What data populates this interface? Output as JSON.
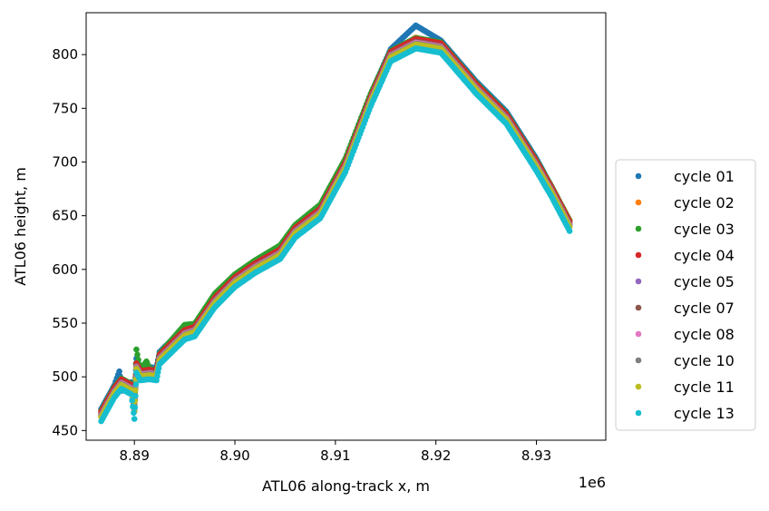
{
  "chart_data": {
    "type": "scatter",
    "title": "",
    "xlabel": "ATL06 along-track x, m",
    "ylabel": "ATL06 height, m",
    "x_offset_label": "1e6",
    "x_units_scale": 1000000,
    "xlim": [
      8.8852,
      8.9369
    ],
    "ylim": [
      441,
      839
    ],
    "x_ticks": [
      8.89,
      8.9,
      8.91,
      8.92,
      8.93
    ],
    "x_tick_labels": [
      "8.89",
      "8.90",
      "8.91",
      "8.92",
      "8.93"
    ],
    "y_ticks": [
      450,
      500,
      550,
      600,
      650,
      700,
      750,
      800
    ],
    "y_tick_labels": [
      "450",
      "500",
      "550",
      "600",
      "650",
      "700",
      "750",
      "800"
    ],
    "grid": false,
    "legend_position": "outside-right-bottom",
    "series": [
      {
        "name": "cycle 01",
        "color": "#1f77b4",
        "dy": 6,
        "points": [
          [
            8.8867,
            465
          ],
          [
            8.888,
            487
          ],
          [
            8.8885,
            500
          ],
          [
            8.8888,
            482
          ],
          [
            8.8897,
            490
          ],
          [
            8.89,
            470
          ],
          [
            8.8902,
            512
          ],
          [
            8.8906,
            503
          ],
          [
            8.8915,
            504
          ],
          [
            8.8922,
            503
          ],
          [
            8.8925,
            518
          ],
          [
            8.895,
            541
          ],
          [
            8.896,
            544
          ],
          [
            8.898,
            571
          ],
          [
            8.9,
            590
          ],
          [
            8.902,
            603
          ],
          [
            8.9045,
            616
          ],
          [
            8.906,
            636
          ],
          [
            8.9085,
            654
          ],
          [
            8.911,
            697
          ],
          [
            8.9135,
            758
          ],
          [
            8.9155,
            800
          ],
          [
            8.918,
            822
          ],
          [
            8.9205,
            808
          ],
          [
            8.924,
            770
          ],
          [
            8.927,
            742
          ],
          [
            8.93,
            698
          ],
          [
            8.9315,
            672
          ],
          [
            8.9333,
            640
          ]
        ]
      },
      {
        "name": "cycle 02",
        "color": "#ff7f0e",
        "dy": 1,
        "points": [
          [
            8.8867,
            465
          ],
          [
            8.888,
            487
          ],
          [
            8.8887,
            495
          ],
          [
            8.8897,
            490
          ],
          [
            8.89,
            475
          ],
          [
            8.8902,
            510
          ],
          [
            8.8906,
            503
          ],
          [
            8.8915,
            504
          ],
          [
            8.8922,
            503
          ],
          [
            8.8925,
            518
          ],
          [
            8.895,
            541
          ],
          [
            8.896,
            544
          ],
          [
            8.898,
            571
          ],
          [
            8.9,
            590
          ],
          [
            8.902,
            603
          ],
          [
            8.9045,
            616
          ],
          [
            8.906,
            636
          ],
          [
            8.9085,
            654
          ],
          [
            8.911,
            697
          ],
          [
            8.9135,
            758
          ],
          [
            8.9155,
            800
          ],
          [
            8.918,
            815
          ],
          [
            8.9205,
            808
          ],
          [
            8.924,
            770
          ],
          [
            8.927,
            742
          ],
          [
            8.93,
            700
          ],
          [
            8.9315,
            676
          ],
          [
            8.9333,
            645
          ]
        ]
      },
      {
        "name": "cycle 03",
        "color": "#2ca02c",
        "dy": 4,
        "points": [
          [
            8.8867,
            465
          ],
          [
            8.888,
            487
          ],
          [
            8.8887,
            495
          ],
          [
            8.8897,
            490
          ],
          [
            8.89,
            470
          ],
          [
            8.8902,
            522
          ],
          [
            8.8906,
            503
          ],
          [
            8.8912,
            511
          ],
          [
            8.8915,
            504
          ],
          [
            8.8922,
            503
          ],
          [
            8.8925,
            518
          ],
          [
            8.895,
            545
          ],
          [
            8.896,
            546
          ],
          [
            8.898,
            574
          ],
          [
            8.9,
            592
          ],
          [
            8.902,
            605
          ],
          [
            8.9045,
            619
          ],
          [
            8.906,
            638
          ],
          [
            8.9085,
            657
          ],
          [
            8.911,
            700
          ],
          [
            8.9135,
            760
          ],
          [
            8.9155,
            800
          ],
          [
            8.918,
            812
          ],
          [
            8.9205,
            808
          ],
          [
            8.924,
            770
          ],
          [
            8.927,
            742
          ],
          [
            8.93,
            698
          ],
          [
            8.9315,
            674
          ],
          [
            8.9333,
            642
          ]
        ]
      },
      {
        "name": "cycle 04",
        "color": "#d62728",
        "dy": 3,
        "points": [
          [
            8.8867,
            465
          ],
          [
            8.888,
            487
          ],
          [
            8.8887,
            495
          ],
          [
            8.8897,
            490
          ],
          [
            8.89,
            470
          ],
          [
            8.8902,
            510
          ],
          [
            8.8906,
            503
          ],
          [
            8.8915,
            504
          ],
          [
            8.8922,
            503
          ],
          [
            8.8925,
            518
          ],
          [
            8.895,
            541
          ],
          [
            8.896,
            544
          ],
          [
            8.898,
            571
          ],
          [
            8.9,
            590
          ],
          [
            8.902,
            603
          ],
          [
            8.9045,
            616
          ],
          [
            8.906,
            636
          ],
          [
            8.9085,
            654
          ],
          [
            8.911,
            697
          ],
          [
            8.9135,
            758
          ],
          [
            8.9155,
            800
          ],
          [
            8.918,
            812
          ],
          [
            8.9205,
            808
          ],
          [
            8.924,
            770
          ],
          [
            8.927,
            742
          ],
          [
            8.93,
            698
          ],
          [
            8.9315,
            674
          ],
          [
            8.9333,
            642
          ]
        ]
      },
      {
        "name": "cycle 05",
        "color": "#9467bd",
        "dy": 0,
        "points": [
          [
            8.8867,
            465
          ],
          [
            8.888,
            487
          ],
          [
            8.8887,
            495
          ],
          [
            8.8897,
            490
          ],
          [
            8.89,
            470
          ],
          [
            8.8902,
            510
          ],
          [
            8.8906,
            503
          ],
          [
            8.8915,
            504
          ],
          [
            8.8922,
            503
          ],
          [
            8.8925,
            518
          ],
          [
            8.895,
            541
          ],
          [
            8.896,
            544
          ],
          [
            8.898,
            571
          ],
          [
            8.9,
            590
          ],
          [
            8.902,
            603
          ],
          [
            8.9045,
            616
          ],
          [
            8.906,
            636
          ],
          [
            8.9085,
            654
          ],
          [
            8.911,
            697
          ],
          [
            8.9135,
            758
          ],
          [
            8.9155,
            800
          ],
          [
            8.918,
            812
          ],
          [
            8.9205,
            808
          ],
          [
            8.924,
            770
          ],
          [
            8.927,
            742
          ],
          [
            8.93,
            698
          ],
          [
            8.9315,
            674
          ],
          [
            8.9333,
            642
          ]
        ]
      },
      {
        "name": "cycle 07",
        "color": "#8c564b",
        "dy": 0,
        "points": [
          [
            8.8867,
            465
          ],
          [
            8.888,
            487
          ],
          [
            8.8887,
            495
          ],
          [
            8.8897,
            490
          ],
          [
            8.89,
            470
          ],
          [
            8.8902,
            510
          ],
          [
            8.8906,
            503
          ],
          [
            8.8915,
            504
          ],
          [
            8.8922,
            503
          ],
          [
            8.8925,
            518
          ],
          [
            8.895,
            541
          ],
          [
            8.896,
            544
          ],
          [
            8.898,
            571
          ],
          [
            8.9,
            590
          ],
          [
            8.902,
            603
          ],
          [
            8.9045,
            616
          ],
          [
            8.906,
            636
          ],
          [
            8.9085,
            654
          ],
          [
            8.911,
            697
          ],
          [
            8.9135,
            758
          ],
          [
            8.9155,
            800
          ],
          [
            8.918,
            812
          ],
          [
            8.9205,
            808
          ],
          [
            8.924,
            770
          ],
          [
            8.927,
            742
          ],
          [
            8.93,
            698
          ],
          [
            8.9315,
            674
          ],
          [
            8.9333,
            642
          ]
        ]
      },
      {
        "name": "cycle 08",
        "color": "#e377c2",
        "dy": -1,
        "points": [
          [
            8.8867,
            465
          ],
          [
            8.888,
            487
          ],
          [
            8.8887,
            495
          ],
          [
            8.8897,
            490
          ],
          [
            8.89,
            470
          ],
          [
            8.8902,
            510
          ],
          [
            8.8906,
            503
          ],
          [
            8.8915,
            504
          ],
          [
            8.8922,
            503
          ],
          [
            8.8925,
            518
          ],
          [
            8.895,
            541
          ],
          [
            8.896,
            544
          ],
          [
            8.898,
            571
          ],
          [
            8.9,
            590
          ],
          [
            8.902,
            603
          ],
          [
            8.9045,
            616
          ],
          [
            8.906,
            636
          ],
          [
            8.9085,
            654
          ],
          [
            8.911,
            697
          ],
          [
            8.9135,
            758
          ],
          [
            8.9155,
            800
          ],
          [
            8.918,
            812
          ],
          [
            8.9205,
            808
          ],
          [
            8.924,
            770
          ],
          [
            8.927,
            742
          ],
          [
            8.93,
            698
          ],
          [
            8.9315,
            674
          ],
          [
            8.9333,
            642
          ]
        ]
      },
      {
        "name": "cycle 10",
        "color": "#7f7f7f",
        "dy": -2,
        "points": [
          [
            8.8867,
            465
          ],
          [
            8.888,
            487
          ],
          [
            8.8887,
            495
          ],
          [
            8.8897,
            490
          ],
          [
            8.89,
            470
          ],
          [
            8.8902,
            510
          ],
          [
            8.8906,
            503
          ],
          [
            8.8915,
            504
          ],
          [
            8.8922,
            503
          ],
          [
            8.8925,
            518
          ],
          [
            8.895,
            541
          ],
          [
            8.896,
            544
          ],
          [
            8.898,
            571
          ],
          [
            8.9,
            590
          ],
          [
            8.902,
            603
          ],
          [
            8.9045,
            616
          ],
          [
            8.906,
            636
          ],
          [
            8.9085,
            654
          ],
          [
            8.911,
            697
          ],
          [
            8.9135,
            758
          ],
          [
            8.9155,
            800
          ],
          [
            8.918,
            812
          ],
          [
            8.9205,
            808
          ],
          [
            8.924,
            770
          ],
          [
            8.927,
            742
          ],
          [
            8.93,
            698
          ],
          [
            8.9315,
            674
          ],
          [
            8.9333,
            642
          ]
        ]
      },
      {
        "name": "cycle 11",
        "color": "#bcbd22",
        "dy": -3,
        "points": [
          [
            8.8867,
            465
          ],
          [
            8.888,
            487
          ],
          [
            8.8887,
            495
          ],
          [
            8.8897,
            490
          ],
          [
            8.89,
            470
          ],
          [
            8.8902,
            510
          ],
          [
            8.8906,
            503
          ],
          [
            8.8915,
            504
          ],
          [
            8.8922,
            503
          ],
          [
            8.8925,
            518
          ],
          [
            8.895,
            541
          ],
          [
            8.896,
            544
          ],
          [
            8.898,
            571
          ],
          [
            8.9,
            590
          ],
          [
            8.902,
            603
          ],
          [
            8.9045,
            616
          ],
          [
            8.906,
            636
          ],
          [
            8.9085,
            654
          ],
          [
            8.911,
            697
          ],
          [
            8.9135,
            758
          ],
          [
            8.9155,
            800
          ],
          [
            8.918,
            812
          ],
          [
            8.9205,
            808
          ],
          [
            8.924,
            770
          ],
          [
            8.927,
            742
          ],
          [
            8.93,
            698
          ],
          [
            8.9315,
            674
          ],
          [
            8.9333,
            642
          ]
        ]
      },
      {
        "name": "cycle 13",
        "color": "#17becf",
        "dy": -5,
        "points": [
          [
            8.8867,
            463
          ],
          [
            8.888,
            485
          ],
          [
            8.8887,
            493
          ],
          [
            8.8897,
            488
          ],
          [
            8.89,
            465
          ],
          [
            8.8902,
            508
          ],
          [
            8.8906,
            501
          ],
          [
            8.8915,
            502
          ],
          [
            8.8922,
            501
          ],
          [
            8.8925,
            516
          ],
          [
            8.895,
            539
          ],
          [
            8.896,
            542
          ],
          [
            8.898,
            569
          ],
          [
            8.9,
            588
          ],
          [
            8.902,
            601
          ],
          [
            8.9045,
            614
          ],
          [
            8.906,
            634
          ],
          [
            8.9085,
            652
          ],
          [
            8.911,
            695
          ],
          [
            8.9135,
            756
          ],
          [
            8.9155,
            798
          ],
          [
            8.918,
            810
          ],
          [
            8.9205,
            806
          ],
          [
            8.924,
            768
          ],
          [
            8.927,
            740
          ],
          [
            8.93,
            696
          ],
          [
            8.9315,
            672
          ],
          [
            8.9333,
            640
          ]
        ]
      }
    ]
  }
}
